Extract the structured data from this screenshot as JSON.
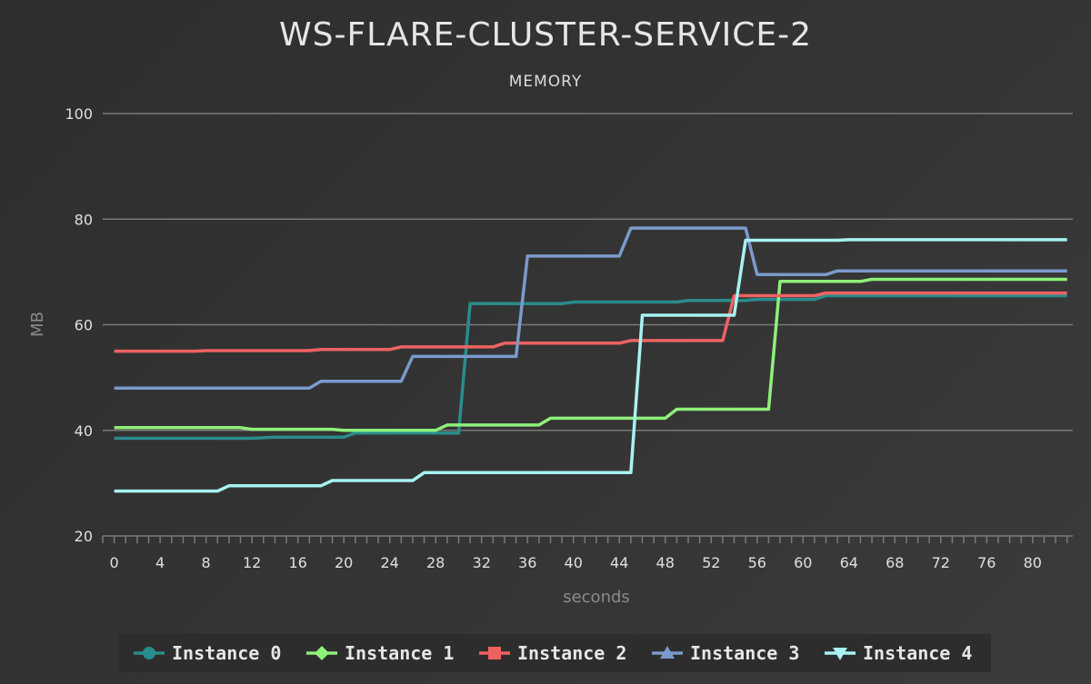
{
  "chart_data": {
    "type": "line",
    "title": "WS-FLARE-CLUSTER-SERVICE-2",
    "subtitle": "MEMORY",
    "xlabel": "seconds",
    "ylabel": "MB",
    "xlim": [
      -1,
      83.5
    ],
    "ylim": [
      20,
      100
    ],
    "yticks": [
      20,
      40,
      60,
      80,
      100
    ],
    "xticks": [
      0,
      4,
      8,
      12,
      16,
      20,
      24,
      28,
      32,
      36,
      40,
      44,
      48,
      52,
      56,
      60,
      64,
      68,
      72,
      76,
      80
    ],
    "grid": true,
    "legend_position": "bottom",
    "series": [
      {
        "name": "Instance 0",
        "color": "#2a8c8c",
        "marker": "circle",
        "points": [
          [
            0,
            38.5
          ],
          [
            12,
            38.5
          ],
          [
            14,
            38.7
          ],
          [
            20,
            38.7
          ],
          [
            21,
            39.5
          ],
          [
            30,
            39.5
          ],
          [
            31,
            64
          ],
          [
            39,
            64
          ],
          [
            40,
            64.3
          ],
          [
            49,
            64.3
          ],
          [
            50,
            64.6
          ],
          [
            55,
            64.6
          ],
          [
            56,
            64.8
          ],
          [
            61,
            64.8
          ],
          [
            62,
            65.5
          ],
          [
            83,
            65.5
          ]
        ]
      },
      {
        "name": "Instance 1",
        "color": "#8ef07a",
        "marker": "diamond",
        "points": [
          [
            0,
            40.5
          ],
          [
            11,
            40.5
          ],
          [
            12,
            40.2
          ],
          [
            19,
            40.2
          ],
          [
            20,
            40
          ],
          [
            28,
            40
          ],
          [
            29,
            41
          ],
          [
            37,
            41
          ],
          [
            38,
            42.3
          ],
          [
            48,
            42.3
          ],
          [
            49,
            44
          ],
          [
            57,
            44
          ],
          [
            58,
            68.2
          ],
          [
            65,
            68.2
          ],
          [
            66,
            68.6
          ],
          [
            83,
            68.6
          ]
        ]
      },
      {
        "name": "Instance 2",
        "color": "#f06262",
        "marker": "square",
        "points": [
          [
            0,
            55
          ],
          [
            7,
            55
          ],
          [
            8,
            55.1
          ],
          [
            17,
            55.1
          ],
          [
            18,
            55.3
          ],
          [
            24,
            55.3
          ],
          [
            25,
            55.8
          ],
          [
            33,
            55.8
          ],
          [
            34,
            56.5
          ],
          [
            44,
            56.5
          ],
          [
            45,
            57
          ],
          [
            53,
            57
          ],
          [
            54,
            65.5
          ],
          [
            61,
            65.5
          ],
          [
            62,
            66
          ],
          [
            83,
            66
          ]
        ]
      },
      {
        "name": "Instance 3",
        "color": "#7b9acc",
        "marker": "triangle-up",
        "points": [
          [
            0,
            48
          ],
          [
            17,
            48
          ],
          [
            18,
            49.3
          ],
          [
            25,
            49.3
          ],
          [
            26,
            54
          ],
          [
            35,
            54
          ],
          [
            36,
            73
          ],
          [
            44,
            73
          ],
          [
            45,
            78.3
          ],
          [
            55,
            78.3
          ],
          [
            56,
            69.5
          ],
          [
            62,
            69.5
          ],
          [
            63,
            70.2
          ],
          [
            83,
            70.2
          ]
        ]
      },
      {
        "name": "Instance 4",
        "color": "#a8f2f2",
        "marker": "triangle-down",
        "points": [
          [
            0,
            28.5
          ],
          [
            9,
            28.5
          ],
          [
            10,
            29.5
          ],
          [
            18,
            29.5
          ],
          [
            19,
            30.5
          ],
          [
            26,
            30.5
          ],
          [
            27,
            32
          ],
          [
            45,
            32
          ],
          [
            46,
            61.8
          ],
          [
            54,
            61.8
          ],
          [
            55,
            76
          ],
          [
            63,
            76
          ],
          [
            64,
            76.1
          ],
          [
            83,
            76.1
          ]
        ]
      }
    ]
  }
}
